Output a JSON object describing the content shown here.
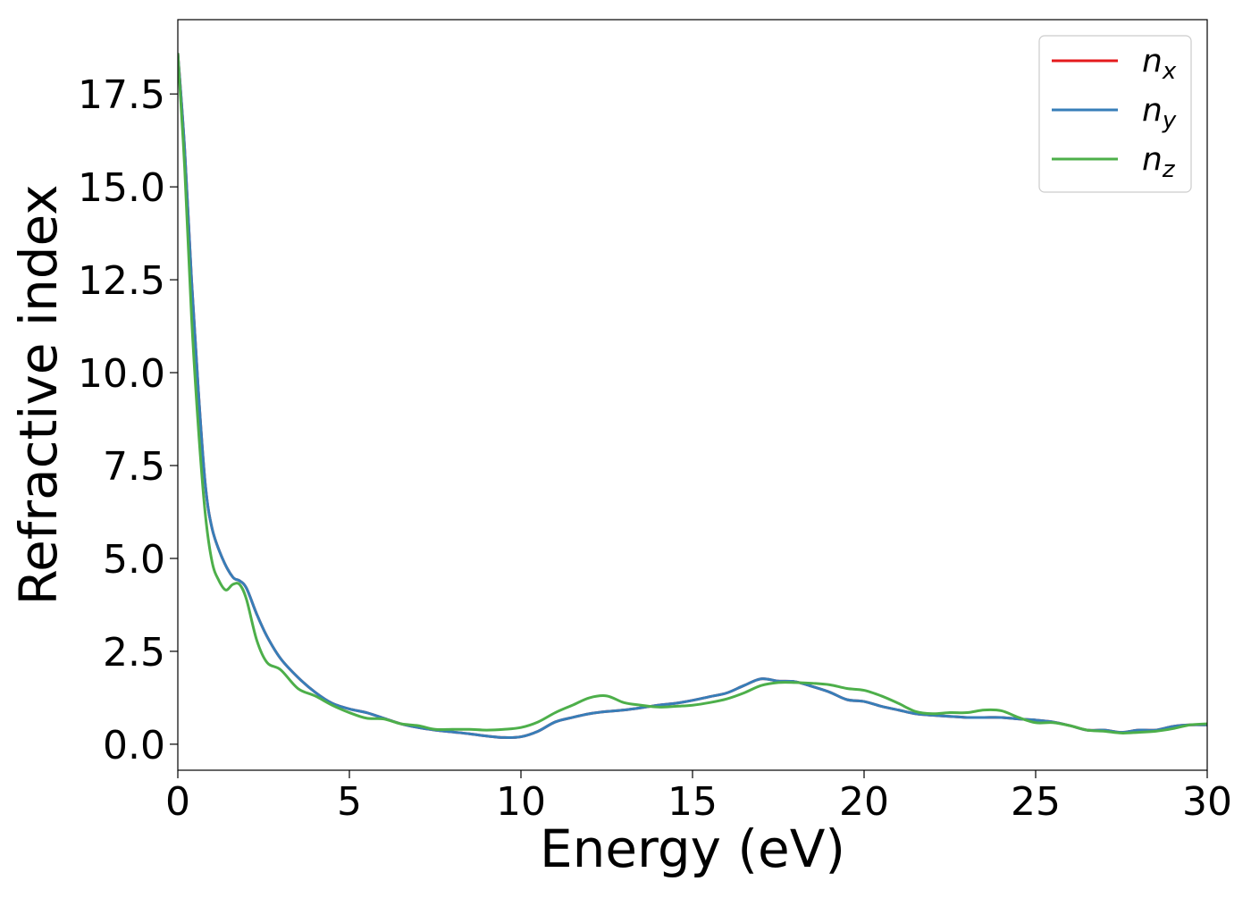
{
  "chart_data": {
    "type": "line",
    "xlabel": "Energy (eV)",
    "ylabel": "Refractive index",
    "xlim": [
      0,
      30
    ],
    "ylim": [
      -0.7,
      19.5
    ],
    "xticks": [
      0,
      5,
      10,
      15,
      20,
      25,
      30
    ],
    "xtick_labels": [
      "0",
      "5",
      "10",
      "15",
      "20",
      "25",
      "30"
    ],
    "yticks": [
      0.0,
      2.5,
      5.0,
      7.5,
      10.0,
      12.5,
      15.0,
      17.5
    ],
    "ytick_labels": [
      "0.0",
      "2.5",
      "5.0",
      "7.5",
      "10.0",
      "12.5",
      "15.0",
      "17.5"
    ],
    "grid": false,
    "legend_position": "top-right",
    "series": [
      {
        "name": "n",
        "subscript": "x",
        "color": "#e41a1c",
        "x": [
          0,
          0.2,
          0.4,
          0.6,
          0.8,
          1.0,
          1.3,
          1.6,
          1.8,
          2.0,
          2.3,
          2.6,
          3.0,
          3.5,
          4.0,
          4.5,
          5.0,
          5.5,
          6.0,
          6.5,
          7.0,
          7.5,
          8.0,
          8.5,
          9.0,
          9.5,
          10.0,
          10.5,
          11.0,
          11.5,
          12.0,
          12.5,
          13.0,
          13.5,
          14.0,
          14.5,
          15.0,
          15.5,
          16.0,
          16.5,
          17.0,
          17.5,
          18.0,
          18.5,
          19.0,
          19.5,
          20.0,
          20.5,
          21.0,
          21.5,
          22.0,
          22.5,
          23.0,
          23.5,
          24.0,
          24.5,
          25.0,
          25.5,
          26.0,
          26.5,
          27.0,
          27.5,
          28.0,
          28.5,
          29.0,
          29.5,
          30.0
        ],
        "y": [
          18.6,
          16.0,
          12.5,
          9.5,
          7.0,
          5.8,
          5.0,
          4.5,
          4.4,
          4.2,
          3.5,
          2.9,
          2.3,
          1.8,
          1.4,
          1.1,
          0.95,
          0.85,
          0.7,
          0.55,
          0.45,
          0.38,
          0.33,
          0.28,
          0.22,
          0.18,
          0.2,
          0.35,
          0.6,
          0.72,
          0.82,
          0.88,
          0.92,
          0.98,
          1.05,
          1.1,
          1.18,
          1.28,
          1.38,
          1.58,
          1.76,
          1.7,
          1.68,
          1.55,
          1.4,
          1.2,
          1.15,
          1.02,
          0.92,
          0.82,
          0.78,
          0.75,
          0.72,
          0.72,
          0.72,
          0.68,
          0.65,
          0.6,
          0.5,
          0.38,
          0.38,
          0.32,
          0.38,
          0.38,
          0.48,
          0.52,
          0.52
        ]
      },
      {
        "name": "n",
        "subscript": "y",
        "color": "#377eb8",
        "x": [
          0,
          0.2,
          0.4,
          0.6,
          0.8,
          1.0,
          1.3,
          1.6,
          1.8,
          2.0,
          2.3,
          2.6,
          3.0,
          3.5,
          4.0,
          4.5,
          5.0,
          5.5,
          6.0,
          6.5,
          7.0,
          7.5,
          8.0,
          8.5,
          9.0,
          9.5,
          10.0,
          10.5,
          11.0,
          11.5,
          12.0,
          12.5,
          13.0,
          13.5,
          14.0,
          14.5,
          15.0,
          15.5,
          16.0,
          16.5,
          17.0,
          17.5,
          18.0,
          18.5,
          19.0,
          19.5,
          20.0,
          20.5,
          21.0,
          21.5,
          22.0,
          22.5,
          23.0,
          23.5,
          24.0,
          24.5,
          25.0,
          25.5,
          26.0,
          26.5,
          27.0,
          27.5,
          28.0,
          28.5,
          29.0,
          29.5,
          30.0
        ],
        "y": [
          18.6,
          16.0,
          12.5,
          9.5,
          7.0,
          5.8,
          5.0,
          4.5,
          4.4,
          4.2,
          3.5,
          2.9,
          2.3,
          1.8,
          1.4,
          1.1,
          0.95,
          0.85,
          0.7,
          0.55,
          0.45,
          0.38,
          0.33,
          0.28,
          0.22,
          0.18,
          0.2,
          0.35,
          0.6,
          0.72,
          0.82,
          0.88,
          0.92,
          0.98,
          1.05,
          1.1,
          1.18,
          1.28,
          1.38,
          1.58,
          1.76,
          1.7,
          1.68,
          1.55,
          1.4,
          1.2,
          1.15,
          1.02,
          0.92,
          0.82,
          0.78,
          0.75,
          0.72,
          0.72,
          0.72,
          0.68,
          0.65,
          0.6,
          0.5,
          0.38,
          0.38,
          0.32,
          0.38,
          0.38,
          0.48,
          0.52,
          0.52
        ]
      },
      {
        "name": "n",
        "subscript": "z",
        "color": "#4daf4a",
        "x": [
          0,
          0.2,
          0.4,
          0.6,
          0.8,
          1.0,
          1.2,
          1.4,
          1.6,
          1.8,
          2.0,
          2.3,
          2.6,
          3.0,
          3.5,
          4.0,
          4.5,
          5.0,
          5.5,
          6.0,
          6.5,
          7.0,
          7.5,
          8.0,
          8.5,
          9.0,
          9.5,
          10.0,
          10.5,
          11.0,
          11.5,
          12.0,
          12.5,
          13.0,
          13.5,
          14.0,
          14.5,
          15.0,
          15.5,
          16.0,
          16.5,
          17.0,
          17.5,
          18.0,
          18.5,
          19.0,
          19.5,
          20.0,
          20.5,
          21.0,
          21.5,
          22.0,
          22.5,
          23.0,
          23.5,
          24.0,
          24.5,
          25.0,
          25.5,
          26.0,
          26.5,
          27.0,
          27.5,
          28.0,
          28.5,
          29.0,
          29.5,
          30.0
        ],
        "y": [
          18.6,
          15.5,
          11.5,
          8.5,
          6.2,
          4.9,
          4.4,
          4.15,
          4.3,
          4.3,
          3.9,
          2.8,
          2.2,
          2.0,
          1.5,
          1.3,
          1.05,
          0.85,
          0.7,
          0.68,
          0.55,
          0.5,
          0.4,
          0.4,
          0.4,
          0.38,
          0.4,
          0.45,
          0.6,
          0.85,
          1.05,
          1.25,
          1.3,
          1.12,
          1.05,
          1.0,
          1.02,
          1.05,
          1.12,
          1.22,
          1.38,
          1.58,
          1.66,
          1.66,
          1.64,
          1.6,
          1.5,
          1.45,
          1.3,
          1.1,
          0.88,
          0.82,
          0.85,
          0.85,
          0.92,
          0.9,
          0.72,
          0.58,
          0.58,
          0.5,
          0.38,
          0.35,
          0.3,
          0.32,
          0.35,
          0.42,
          0.52,
          0.55
        ]
      }
    ]
  }
}
